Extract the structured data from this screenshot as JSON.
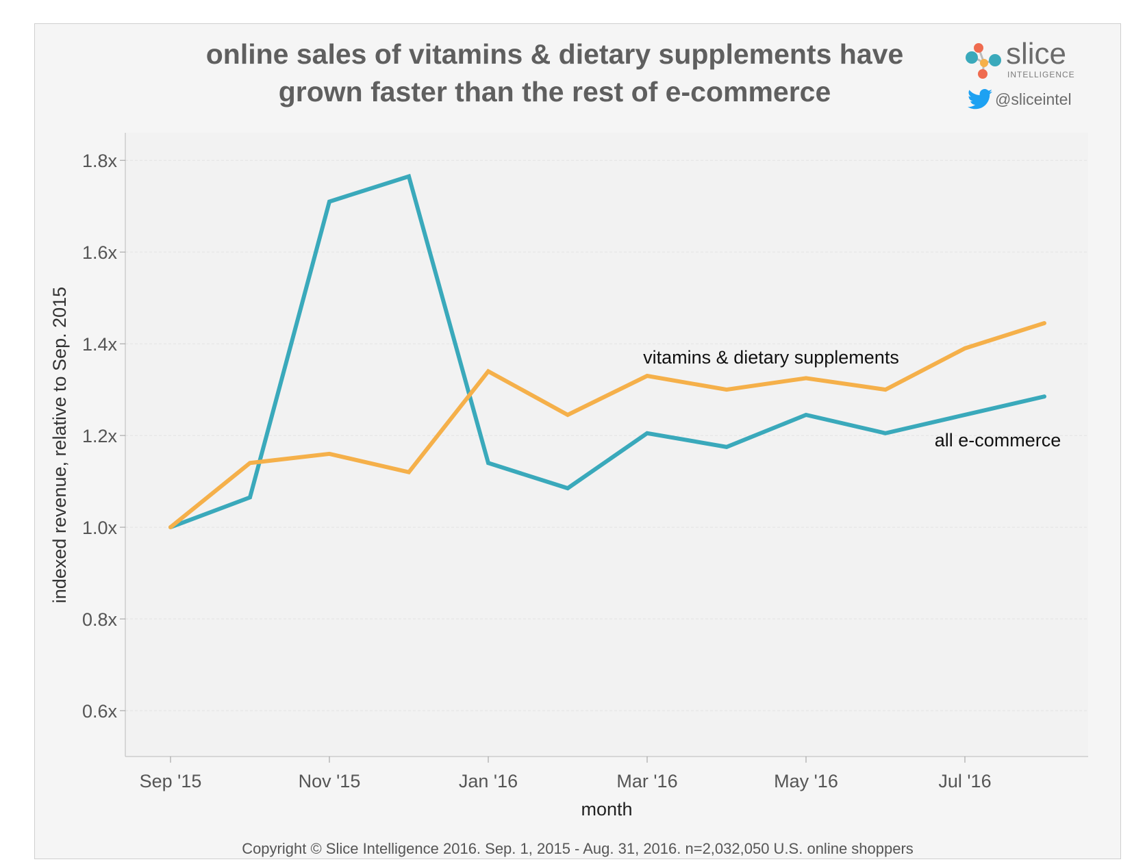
{
  "header": {
    "title_line1": "online sales of vitamins & dietary supplements have",
    "title_line2": "grown faster than the rest of e-commerce"
  },
  "brand": {
    "name": "slice",
    "tagline": "INTELLIGENCE",
    "twitter_handle": "@sliceintel",
    "dot_colors": [
      "#ef6b4f",
      "#3aa9bb",
      "#f5b04a"
    ],
    "twitter_color": "#1da1f2"
  },
  "footer": {
    "copyright": "Copyright © Slice Intelligence 2016. Sep. 1, 2015 - Aug. 31, 2016. n=2,032,050 U.S. online shoppers"
  },
  "chart_data": {
    "type": "line",
    "xlabel": "month",
    "ylabel": "indexed revenue, relative to Sep. 2015",
    "x": [
      "Sep '15",
      "Oct '15",
      "Nov '15",
      "Dec '15",
      "Jan '16",
      "Feb '16",
      "Mar '16",
      "Apr '16",
      "May '16",
      "Jun '16",
      "Jul '16",
      "Aug '16"
    ],
    "x_tick_labels": [
      "Sep '15",
      "Nov '15",
      "Jan '16",
      "Mar '16",
      "May '16",
      "Jul '16"
    ],
    "y_ticks": [
      0.6,
      0.8,
      1.0,
      1.2,
      1.4,
      1.6,
      1.8
    ],
    "y_tick_labels": [
      "0.6x",
      "0.8x",
      "1.0x",
      "1.2x",
      "1.4x",
      "1.6x",
      "1.8x"
    ],
    "ylim": [
      0.5,
      1.86
    ],
    "grid": true,
    "series": [
      {
        "name": "vitamins & dietary supplements",
        "color": "#f5b04a",
        "values": [
          1.0,
          1.14,
          1.16,
          1.12,
          1.34,
          1.245,
          1.33,
          1.3,
          1.325,
          1.3,
          1.39,
          1.445
        ]
      },
      {
        "name": "all e-commerce",
        "color": "#3aa9bb",
        "values": [
          1.0,
          1.065,
          1.71,
          1.765,
          1.14,
          1.085,
          1.205,
          1.175,
          1.245,
          1.205,
          1.245,
          1.285
        ]
      }
    ]
  }
}
